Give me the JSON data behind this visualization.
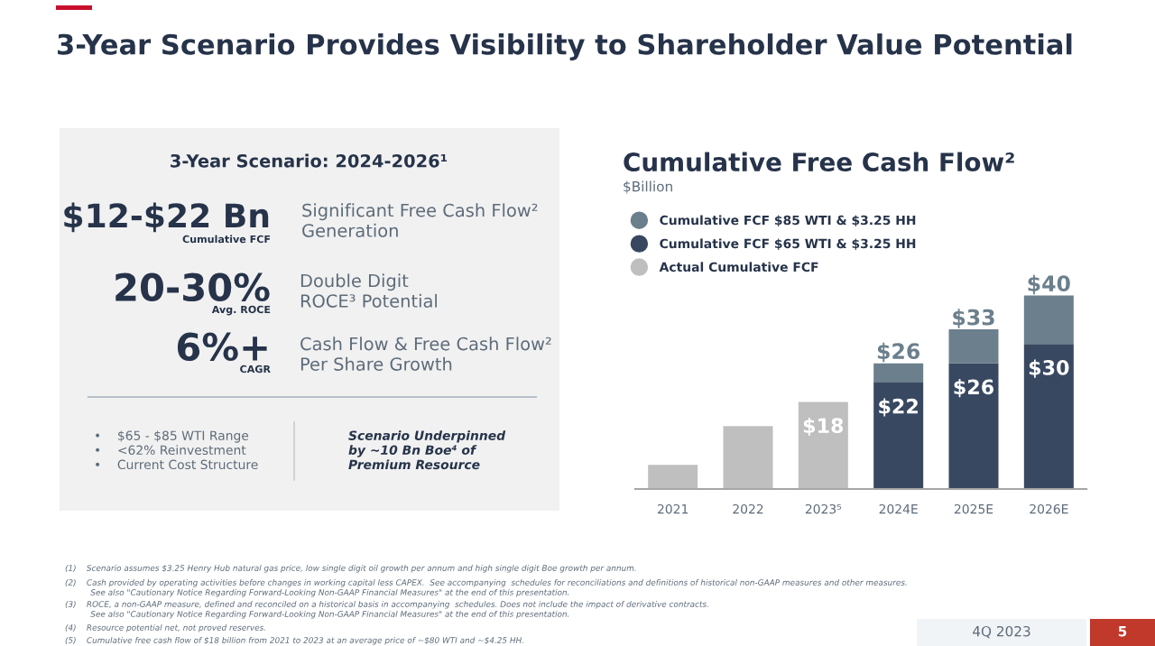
{
  "chart_data": [
    {
      "type": "other",
      "title": "3-Year Scenario Provides Visibility to Shareholder Value Potential",
      "subtitle": "3-Year Scenario: 2024-2026¹",
      "annotations": [
        "$12-$22 Bn",
        "Cumulative FCF",
        "Significant Free Cash Flow²\nGeneration",
        "20-30%",
        "Avg. ROCE",
        "Double Digit\nROCE³ Potential",
        "6%+",
        "CAGR",
        "Cash Flow & Free Cash Flow²\nPer Share Growth",
        "•    $65 - $85 WTI Range\n•    <62% Reinvestment\n•    Current Cost Structure",
        "Scenario Underpinned\nby ~10 Bn Boe⁴ of\nPremium Resource",
        "(1)    Scenario assumes $3.25 Henry Hub natural gas price, low single digit oil growth per annum and high single digit Boe growth per annum.",
        "(2)    Cash provided by operating activities before changes in working capital less CAPEX.  See accompanying  schedules for reconciliations and definitions of historical non-GAAP measures and other measures.\n          See also \"Cautionary Notice Regarding Forward-Looking Non-GAAP Financial Measures\" at the end of this presentation.",
        "(3)    ROCE, a non-GAAP measure, defined and reconciled on a historical basis in accompanying  schedules. Does not include the impact of derivative contracts.\n          See also \"Cautionary Notice Regarding Forward-Looking Non-GAAP Financial Measures\" at the end of this presentation.",
        "(4)    Resource potential net, not proved reserves.",
        "(5)    Cumulative free cash flow of $18 billion from 2021 to 2023 at an average price of ~$80 WTI and ~$4.25 HH.",
        "4Q 2023",
        "5"
      ]
    },
    {
      "type": "bar",
      "stacked": true,
      "title": "Cumulative Free Cash Flow²",
      "subtitle": "$Billion",
      "legend": "top left",
      "categories": [
        "2021",
        "2022",
        "2023⁵",
        "2024E",
        "2025E",
        "2026E"
      ],
      "series": [
        {
          "name": "Actual Cumulative FCF",
          "color": "#bfbfbf",
          "values": [
            5,
            13,
            18,
            null,
            null,
            null
          ],
          "value_labels": [
            null,
            null,
            "$18",
            null,
            null,
            null
          ]
        },
        {
          "name": "Cumulative FCF $65 WTI & $3.25 HH",
          "color": "#394861",
          "values": [
            null,
            null,
            null,
            22,
            26,
            30
          ],
          "value_labels": [
            null,
            null,
            null,
            "$22",
            "$26",
            "$30"
          ]
        },
        {
          "name": "Cumulative FCF $85 WTI & $3.25 HH",
          "color": "#6b7f8c",
          "values": [
            null,
            null,
            null,
            4,
            7,
            10
          ]
        }
      ],
      "totals": [
        null,
        null,
        null,
        "$26",
        "$33",
        "$40"
      ]
    }
  ]
}
